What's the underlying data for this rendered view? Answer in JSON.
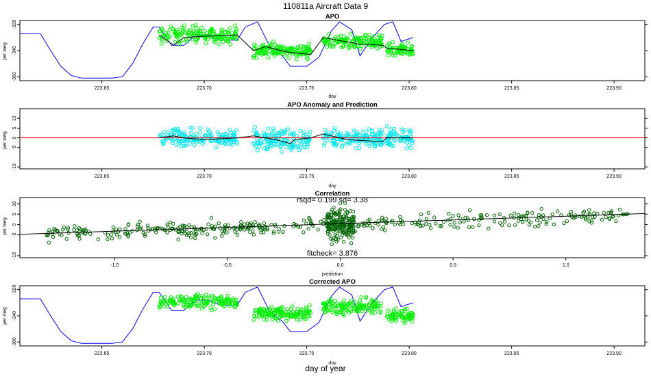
{
  "figure": {
    "title": "110811a   Aircraft Data 9",
    "bottom_label": "day of year"
  },
  "colors": {
    "line_blue": "#0000ff",
    "points_green": "#00ee00",
    "points_green_dark": "#00aa00",
    "points_cyan": "#00e5ee",
    "points_darkgreen": "#006400",
    "zero_line_red": "#ff0000",
    "fit_black": "#000000"
  },
  "chart_data": [
    {
      "type": "line",
      "title": "APO",
      "xlabel": "doy",
      "ylabel": "per meg",
      "xlim": [
        223.61,
        223.915
      ],
      "ylim": [
        -363,
        -317
      ],
      "xticks": [
        "223.65",
        "223.70",
        "223.75",
        "223.80",
        "223.85",
        "223.90"
      ],
      "yticks": [
        "-320",
        "-340",
        "-360"
      ],
      "grid": false,
      "legend": "none",
      "series": [
        {
          "kind": "line",
          "color": "#0000ff",
          "x": [
            223.61,
            223.62,
            223.625,
            223.63,
            223.635,
            223.64,
            223.645,
            223.65,
            223.655,
            223.66,
            223.665,
            223.67,
            223.675,
            223.678,
            223.684,
            223.69,
            223.696,
            223.702,
            223.708,
            223.716,
            223.72,
            223.726,
            223.732,
            223.738,
            223.742,
            223.75,
            223.756,
            223.762,
            223.766,
            223.772,
            223.776,
            223.782,
            223.788,
            223.792,
            223.796,
            223.802
          ],
          "y": [
            -327,
            -327,
            -340,
            -352,
            -359,
            -361,
            -361,
            -361,
            -361,
            -360,
            -350,
            -335,
            -322,
            -322,
            -336,
            -336,
            -328,
            -328,
            -332,
            -332,
            -322,
            -318,
            -337,
            -344,
            -352,
            -352,
            -345,
            -325,
            -318,
            -324,
            -344,
            -330,
            -320,
            -318,
            -333,
            -330
          ]
        },
        {
          "kind": "scatter",
          "color": "#00ee00",
          "segments": [
            {
              "x_start": 223.678,
              "x_end": 223.716,
              "center": -328,
              "spread": 6,
              "n": 170
            },
            {
              "x_start": 223.724,
              "x_end": 223.752,
              "center": -340,
              "spread": 5,
              "n": 150
            },
            {
              "x_start": 223.758,
              "x_end": 223.787,
              "center": -333,
              "spread": 5,
              "n": 150
            },
            {
              "x_start": 223.789,
              "x_end": 223.802,
              "center": -340,
              "spread": 5,
              "n": 70
            }
          ]
        },
        {
          "kind": "line",
          "color": "#000000",
          "x": [
            223.678,
            223.685,
            223.69,
            223.7,
            223.716,
            223.724,
            223.73,
            223.74,
            223.752,
            223.758,
            223.765,
            223.775,
            223.787,
            223.789,
            223.795,
            223.802
          ],
          "y": [
            -328,
            -336,
            -330,
            -329,
            -328,
            -340,
            -337,
            -341,
            -343,
            -330,
            -332,
            -335,
            -336,
            -338,
            -339,
            -340
          ]
        }
      ]
    },
    {
      "type": "scatter",
      "title": "APO Anomaly and Prediction",
      "xlabel": "doy",
      "ylabel": "per meg",
      "xlim": [
        223.61,
        223.915
      ],
      "ylim": [
        -16,
        15
      ],
      "xticks": [
        "223.65",
        "223.70",
        "223.75",
        "223.80",
        "223.85",
        "223.90"
      ],
      "yticks": [
        "10",
        "5",
        "0",
        "-5",
        "-15"
      ],
      "grid": false,
      "legend": "none",
      "series": [
        {
          "kind": "scatter",
          "color": "#00e5ee",
          "segments": [
            {
              "x_start": 223.678,
              "x_end": 223.716,
              "center": 0,
              "spread": 4,
              "n": 170
            },
            {
              "x_start": 223.724,
              "x_end": 223.752,
              "center": -1,
              "spread": 5,
              "n": 150
            },
            {
              "x_start": 223.758,
              "x_end": 223.787,
              "center": 0,
              "spread": 5,
              "n": 150
            },
            {
              "x_start": 223.789,
              "x_end": 223.802,
              "center": 0,
              "spread": 5,
              "n": 70
            }
          ]
        },
        {
          "kind": "line",
          "color": "#ff0000",
          "x": [
            223.61,
            223.915
          ],
          "y": [
            0,
            0
          ]
        },
        {
          "kind": "line",
          "color": "#000000",
          "x": [
            223.678,
            223.685,
            223.69,
            223.7,
            223.716,
            223.724,
            223.735,
            223.742,
            223.744,
            223.752,
            223.758,
            223.77,
            223.787,
            223.789,
            223.802
          ],
          "y": [
            0,
            1,
            0,
            -1,
            0,
            1,
            -1,
            -3,
            -1,
            0,
            2,
            -1,
            -2,
            0,
            0
          ]
        }
      ]
    },
    {
      "type": "scatter",
      "title": "Correlation",
      "xlabel": "prediction",
      "ylabel": "per meg",
      "xlim": [
        -1.42,
        1.35
      ],
      "ylim": [
        -16,
        13
      ],
      "xticks": [
        "-1.0",
        "-0.5",
        "0.0",
        "0.5",
        "1.0"
      ],
      "yticks": [
        "10",
        "5",
        "0",
        "-5",
        "-15"
      ],
      "grid": false,
      "legend": "none",
      "annotations": {
        "rsqd": "rsqd= 0.199 sd= 3.38",
        "fitcheck": "fitcheck= 3.876"
      },
      "series": [
        {
          "kind": "scatter",
          "color": "#006400",
          "clusters": [
            {
              "x_start": -1.32,
              "x_end": 1.28,
              "slope": 3.5,
              "intercept": 0,
              "spread": 3.4,
              "n": 430
            },
            {
              "x_start": -0.06,
              "x_end": 0.06,
              "slope": 0,
              "intercept": 0,
              "spread": 7,
              "n": 180
            }
          ]
        },
        {
          "kind": "line",
          "color": "#000000",
          "x": [
            -1.42,
            1.35
          ],
          "y": [
            -4.7,
            5.3
          ]
        }
      ]
    },
    {
      "type": "line",
      "title": "Corrected APO",
      "xlabel": "doy",
      "ylabel": "per meg",
      "xlim": [
        223.61,
        223.915
      ],
      "ylim": [
        -363,
        -317
      ],
      "xticks": [
        "223.65",
        "223.70",
        "223.75",
        "223.80",
        "223.85",
        "223.90"
      ],
      "yticks": [
        "-320",
        "-340",
        "-360"
      ],
      "grid": false,
      "legend": "none",
      "series": [
        {
          "kind": "line",
          "color": "#0000ff",
          "x": [
            223.61,
            223.62,
            223.625,
            223.63,
            223.635,
            223.64,
            223.645,
            223.65,
            223.655,
            223.66,
            223.665,
            223.67,
            223.675,
            223.678,
            223.684,
            223.69,
            223.696,
            223.702,
            223.708,
            223.716,
            223.72,
            223.726,
            223.732,
            223.738,
            223.742,
            223.75,
            223.756,
            223.762,
            223.766,
            223.772,
            223.776,
            223.782,
            223.788,
            223.792,
            223.796,
            223.802
          ],
          "y": [
            -327,
            -327,
            -340,
            -352,
            -359,
            -361,
            -361,
            -361,
            -361,
            -360,
            -350,
            -335,
            -322,
            -322,
            -336,
            -336,
            -328,
            -328,
            -332,
            -332,
            -322,
            -318,
            -337,
            -344,
            -352,
            -352,
            -345,
            -325,
            -318,
            -324,
            -344,
            -330,
            -320,
            -318,
            -333,
            -330
          ]
        },
        {
          "kind": "scatter",
          "color": "#00ee00",
          "segments": [
            {
              "x_start": 223.678,
              "x_end": 223.716,
              "center": -329,
              "spread": 5,
              "n": 170
            },
            {
              "x_start": 223.724,
              "x_end": 223.752,
              "center": -338,
              "spread": 5,
              "n": 150
            },
            {
              "x_start": 223.758,
              "x_end": 223.787,
              "center": -333,
              "spread": 5,
              "n": 150
            },
            {
              "x_start": 223.789,
              "x_end": 223.802,
              "center": -340,
              "spread": 5,
              "n": 70
            }
          ]
        }
      ]
    }
  ]
}
